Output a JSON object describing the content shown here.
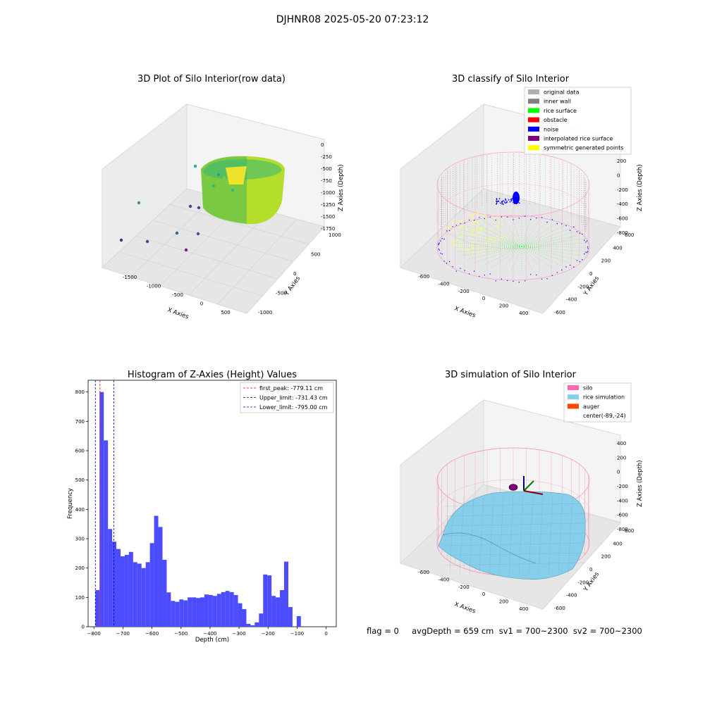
{
  "figure": {
    "suptitle": "DJHNR08 2025-05-20 07:23:12"
  },
  "chart_data": [
    {
      "type": "scatter",
      "title": "3D Plot of Silo Interior(row data)",
      "xlabel": "X Axies",
      "ylabel": "Y Axies",
      "zlabel": "Z Axies (Depth)",
      "x_ticks": [
        "-1500",
        "-1000",
        "-500",
        "0",
        "500"
      ],
      "y_ticks": [
        "-1000",
        "-500",
        "0",
        "500",
        "1000"
      ],
      "z_ticks": [
        "0",
        "-250",
        "-500",
        "-750",
        "-1000",
        "-1250",
        "-1500",
        "-1750"
      ],
      "colormap": "viridis"
    },
    {
      "type": "scatter",
      "title": "3D classify of Silo Interior",
      "xlabel": "X Axies",
      "ylabel": "Y Axies",
      "zlabel": "Z Axies (Depth)",
      "x_ticks": [
        "-600",
        "-400",
        "-200",
        "0",
        "200",
        "400"
      ],
      "y_ticks": [
        "-600",
        "-400",
        "-200",
        "0",
        "200",
        "400",
        "600"
      ],
      "z_ticks": [
        "200",
        "0",
        "-200",
        "-400",
        "-600",
        "-800"
      ],
      "z_top_partial": "00",
      "legend_position": "top-right",
      "legend": [
        {
          "label": "original data",
          "color": "#b0b0b0"
        },
        {
          "label": "inner wall",
          "color": "#808080"
        },
        {
          "label": "rice surface",
          "color": "#00ff00"
        },
        {
          "label": "obstacle",
          "color": "#ff0000"
        },
        {
          "label": "noise",
          "color": "#0000ff"
        },
        {
          "label": "interpolated rice surface",
          "color": "#800080"
        },
        {
          "label": "symmetric generated points",
          "color": "#ffff00"
        }
      ]
    },
    {
      "type": "bar",
      "title": "Histogram of Z-Axies (Height) Values",
      "xlabel": "Depth (cm)",
      "ylabel": "Frequency",
      "xlim": [
        -820,
        35
      ],
      "ylim": [
        0,
        840
      ],
      "x_ticks": [
        -800,
        -700,
        -600,
        -500,
        -400,
        -300,
        -200,
        -100,
        0
      ],
      "y_ticks": [
        0,
        100,
        200,
        300,
        400,
        500,
        600,
        700,
        800
      ],
      "bar_color": "#4c4cff",
      "bin_width": 14.45,
      "bin_start": -795.0,
      "values": [
        125,
        800,
        635,
        333,
        290,
        265,
        240,
        245,
        255,
        220,
        215,
        200,
        220,
        285,
        378,
        340,
        228,
        117,
        88,
        85,
        93,
        90,
        100,
        100,
        98,
        100,
        110,
        108,
        105,
        112,
        118,
        122,
        118,
        108,
        80,
        60,
        10,
        5,
        15,
        45,
        178,
        175,
        105,
        100,
        125,
        222,
        67,
        0,
        36
      ],
      "vlines": [
        {
          "label": "first_peak: -779.11 cm",
          "x": -779.11,
          "color": "#ff0000"
        },
        {
          "label": "Upper_limit: -731.43 cm",
          "x": -731.43,
          "color": "#0000aa"
        },
        {
          "label": "Lower_limit: -795.00 cm",
          "x": -795.0,
          "color": "#0000aa"
        }
      ],
      "legend_position": "top-right"
    },
    {
      "type": "surface",
      "title": "3D simulation of Silo Interior",
      "xlabel": "X Axies",
      "ylabel": "Y Axies",
      "zlabel": "Z Axies (Depth)",
      "x_ticks": [
        "-600",
        "-400",
        "-200",
        "0",
        "200",
        "400"
      ],
      "y_ticks": [
        "-600",
        "-400",
        "-200",
        "0",
        "200",
        "400",
        "600"
      ],
      "z_ticks": [
        "400",
        "200",
        "0",
        "-200",
        "-400",
        "-600",
        "-800"
      ],
      "legend_position": "top-right",
      "legend": [
        {
          "label": "silo",
          "color": "#ff69b4"
        },
        {
          "label": "rice simulation",
          "color": "#87ceeb"
        },
        {
          "label": "auger",
          "color": "#ff4500"
        },
        {
          "label": "center(-89,-24)",
          "color": "none"
        }
      ]
    }
  ],
  "footer": {
    "text": "flag = 0     avgDepth = 659 cm  sv1 = 700~2300  sv2 = 700~2300"
  }
}
